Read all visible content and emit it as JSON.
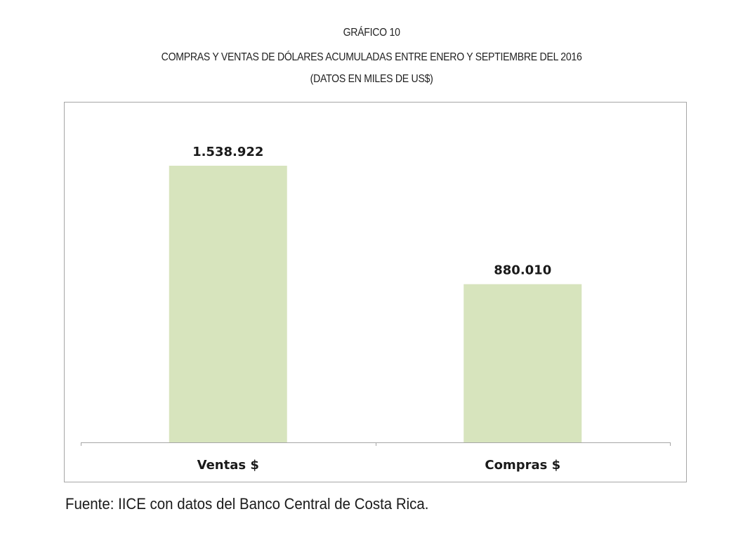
{
  "heading": {
    "label": "GRÁFICO 10",
    "title": "COMPRAS Y VENTAS DE DÓLARES ACUMULADAS ENTRE ENERO Y SEPTIEMBRE DEL 2016",
    "subtitle": "(DATOS EN MILES DE US$)"
  },
  "chart_data": {
    "type": "bar",
    "title": "COMPRAS Y VENTAS DE DÓLARES ACUMULADAS ENTRE ENERO Y SEPTIEMBRE DEL 2016",
    "subtitle": "(DATOS EN MILES DE US$)",
    "categories": [
      "Ventas $",
      "Compras $"
    ],
    "values": [
      1538922,
      880010
    ],
    "value_labels": [
      "1.538.922",
      "880.010"
    ],
    "xlabel": "",
    "ylabel": "",
    "ylim": [
      0,
      1800000
    ],
    "grid": false,
    "legend": "none",
    "bar_color": "#d7e4bd",
    "axis_color": "#a6a6a6"
  },
  "source_note": "Fuente: IICE con datos del Banco Central de Costa Rica."
}
